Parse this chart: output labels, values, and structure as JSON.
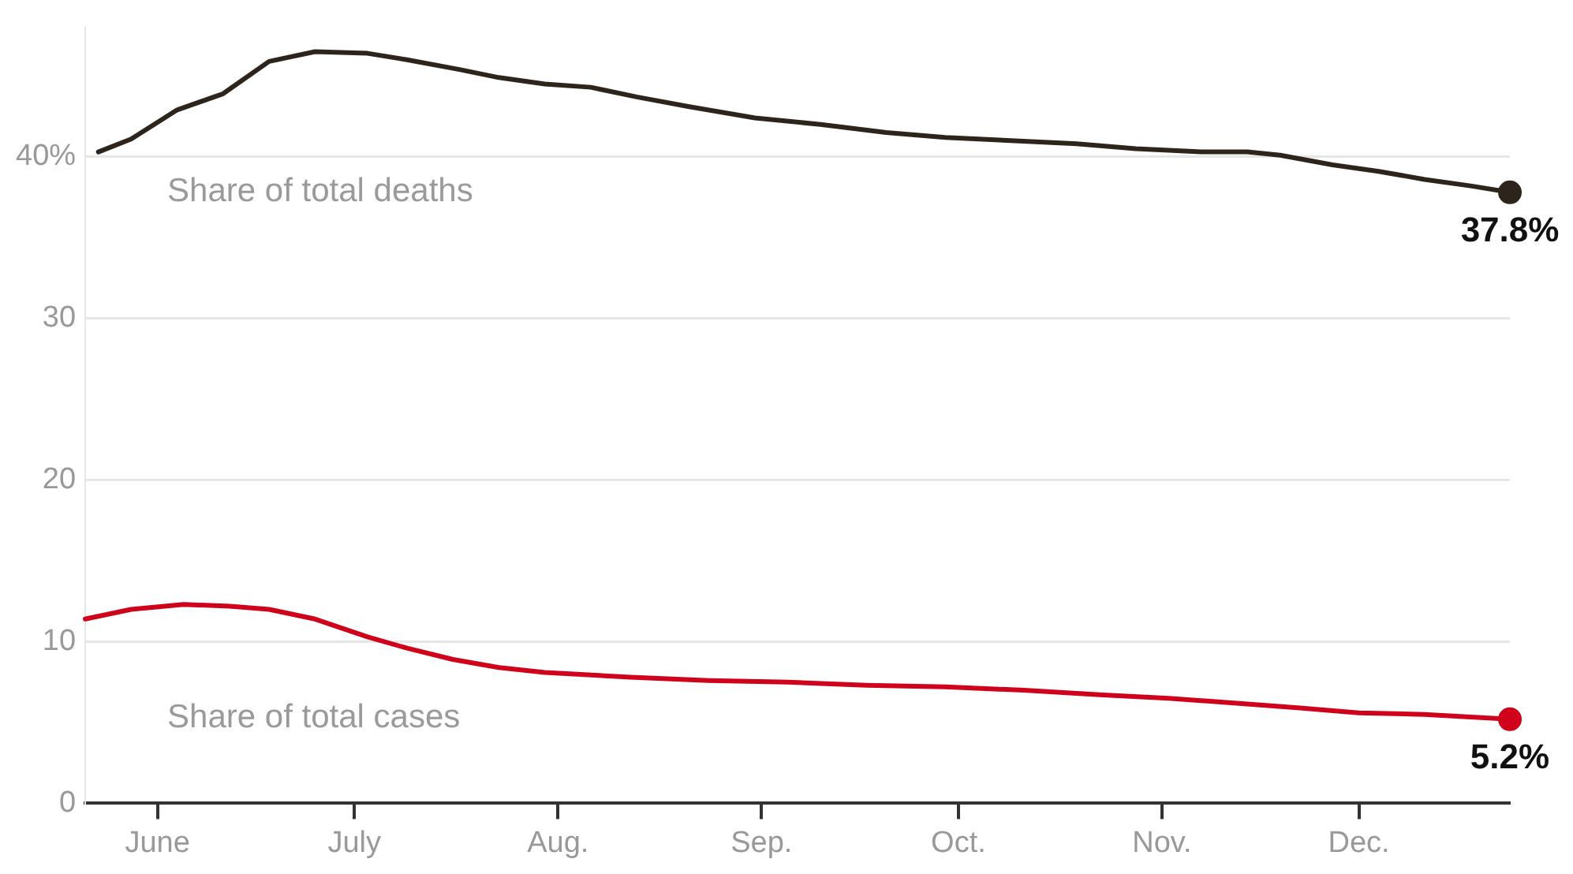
{
  "chart_data": {
    "type": "line",
    "xlim": [
      "--05-21",
      "--12-24"
    ],
    "xticks": [
      {
        "value": "--06-01",
        "label": "June"
      },
      {
        "value": "--07-01",
        "label": "July"
      },
      {
        "value": "--08-01",
        "label": "Aug."
      },
      {
        "value": "--09-01",
        "label": "Sep."
      },
      {
        "value": "--10-01",
        "label": "Oct."
      },
      {
        "value": "--11-01",
        "label": "Nov."
      },
      {
        "value": "--12-01",
        "label": "Dec."
      }
    ],
    "ylim": [
      0,
      48
    ],
    "yticks": [
      0,
      10,
      20,
      30,
      {
        "value": 40,
        "label": "40%"
      }
    ],
    "grid": "y",
    "legend": false,
    "marker": "none",
    "line_style": "solid",
    "series": [
      {
        "name": "Share of total deaths",
        "color": "#2d241c",
        "x": [
          "--05-23",
          "--05-28",
          "--06-04",
          "--06-11",
          "--06-18",
          "--06-25",
          "--07-03",
          "--07-09",
          "--07-17",
          "--07-23",
          "--07-30",
          "--08-06",
          "--08-13",
          "--08-21",
          "--08-31",
          "--09-10",
          "--09-20",
          "--09-29",
          "--10-09",
          "--10-19",
          "--10-28",
          "--11-07",
          "--11-14",
          "--11-19",
          "--11-27",
          "--12-04",
          "--12-11",
          "--12-18",
          "--12-24"
        ],
        "values": [
          40.3,
          41.1,
          42.9,
          43.9,
          45.9,
          46.5,
          46.4,
          46.0,
          45.4,
          44.9,
          44.5,
          44.3,
          43.7,
          43.1,
          42.4,
          42.0,
          41.5,
          41.2,
          41.0,
          40.8,
          40.5,
          40.3,
          40.3,
          40.1,
          39.5,
          39.1,
          38.6,
          38.2,
          37.8
        ],
        "value_labels": [
          null,
          null,
          null,
          null,
          null,
          null,
          null,
          null,
          null,
          null,
          null,
          null,
          null,
          null,
          null,
          null,
          null,
          null,
          null,
          null,
          null,
          null,
          null,
          null,
          null,
          null,
          null,
          null,
          "37.8%"
        ]
      },
      {
        "name": "Share of total cases",
        "color": "#d0021b",
        "x": [
          "--05-21",
          "--05-28",
          "--06-05",
          "--06-12",
          "--06-18",
          "--06-25",
          "--07-03",
          "--07-09",
          "--07-16",
          "--07-23",
          "--07-30",
          "--08-12",
          "--08-24",
          "--09-05",
          "--09-17",
          "--09-29",
          "--10-11",
          "--10-23",
          "--11-02",
          "--11-12",
          "--11-22",
          "--12-01",
          "--12-11",
          "--12-24"
        ],
        "values": [
          11.4,
          12.0,
          12.3,
          12.2,
          12.0,
          11.4,
          10.3,
          9.6,
          8.9,
          8.4,
          8.1,
          7.8,
          7.6,
          7.5,
          7.3,
          7.2,
          7.0,
          6.7,
          6.5,
          6.2,
          5.9,
          5.6,
          5.5,
          5.2
        ],
        "value_labels": [
          null,
          null,
          null,
          null,
          null,
          null,
          null,
          null,
          null,
          null,
          null,
          null,
          null,
          null,
          null,
          null,
          null,
          null,
          null,
          null,
          null,
          null,
          null,
          "5.2%"
        ]
      }
    ]
  }
}
